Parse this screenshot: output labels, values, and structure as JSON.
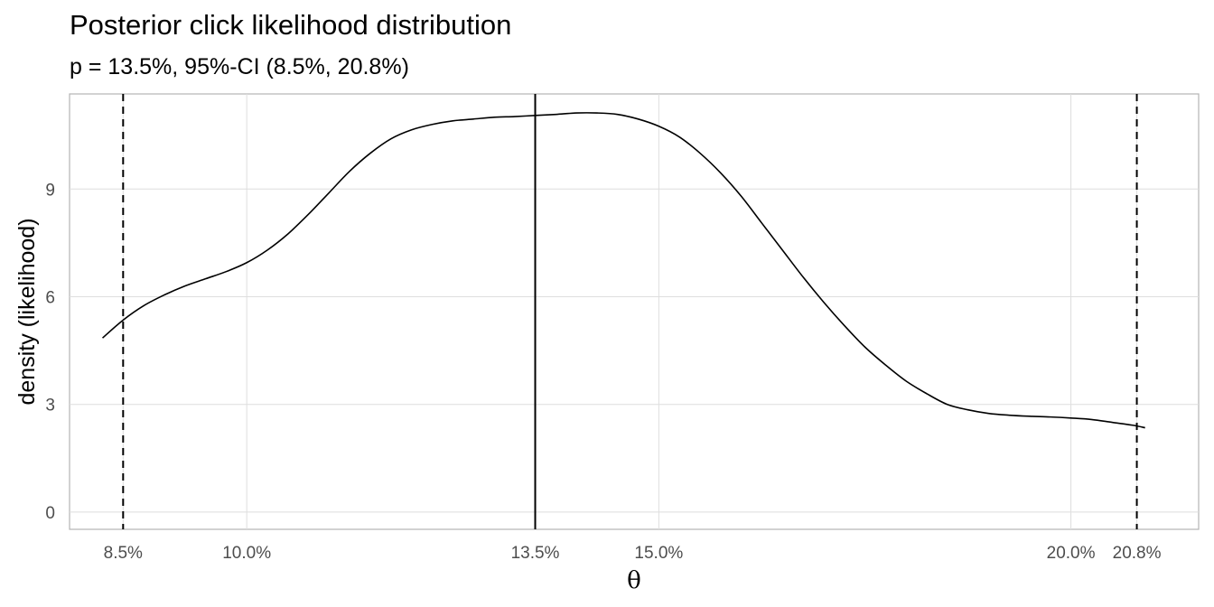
{
  "chart_data": {
    "type": "line",
    "title": "Posterior click likelihood distribution",
    "subtitle": "p = 13.5%, 95%-CI (8.5%, 20.8%)",
    "xlabel": "θ",
    "ylabel": "density (likelihood)",
    "xlim": [
      0.0785,
      0.2155
    ],
    "ylim": [
      -0.48,
      11.65
    ],
    "x_ticks": [
      {
        "value": 0.085,
        "label": "8.5%"
      },
      {
        "value": 0.1,
        "label": "10.0%"
      },
      {
        "value": 0.135,
        "label": "13.5%"
      },
      {
        "value": 0.15,
        "label": "15.0%"
      },
      {
        "value": 0.2,
        "label": "20.0%"
      },
      {
        "value": 0.208,
        "label": "20.8%"
      }
    ],
    "y_ticks": [
      {
        "value": 0,
        "label": "0"
      },
      {
        "value": 3,
        "label": "3"
      },
      {
        "value": 6,
        "label": "6"
      },
      {
        "value": 9,
        "label": "9"
      }
    ],
    "grid": true,
    "series": [
      {
        "x": [
          0.0825,
          0.085,
          0.0875,
          0.09,
          0.0925,
          0.095,
          0.0975,
          0.1,
          0.1025,
          0.105,
          0.1075,
          0.11,
          0.1125,
          0.115,
          0.1175,
          0.12,
          0.1225,
          0.125,
          0.1275,
          0.13,
          0.1325,
          0.135,
          0.1375,
          0.14,
          0.1425,
          0.145,
          0.1475,
          0.15,
          0.1525,
          0.155,
          0.1575,
          0.16,
          0.1625,
          0.165,
          0.1675,
          0.17,
          0.1725,
          0.175,
          0.1775,
          0.18,
          0.1825,
          0.185,
          0.1875,
          0.19,
          0.1925,
          0.195,
          0.1975,
          0.2,
          0.2025,
          0.205,
          0.2075,
          0.209
        ],
        "y": [
          4.85,
          5.35,
          5.75,
          6.05,
          6.3,
          6.5,
          6.7,
          6.95,
          7.3,
          7.75,
          8.3,
          8.9,
          9.5,
          10.0,
          10.4,
          10.65,
          10.8,
          10.9,
          10.95,
          11.0,
          11.02,
          11.05,
          11.08,
          11.12,
          11.12,
          11.08,
          10.95,
          10.75,
          10.45,
          10.0,
          9.45,
          8.8,
          8.05,
          7.3,
          6.55,
          5.85,
          5.2,
          4.6,
          4.1,
          3.65,
          3.3,
          3.0,
          2.85,
          2.75,
          2.7,
          2.67,
          2.65,
          2.62,
          2.58,
          2.5,
          2.42,
          2.35
        ]
      }
    ],
    "vlines": [
      {
        "x": 0.135,
        "style": "solid"
      },
      {
        "x": 0.085,
        "style": "dashed"
      },
      {
        "x": 0.208,
        "style": "dashed"
      }
    ]
  }
}
